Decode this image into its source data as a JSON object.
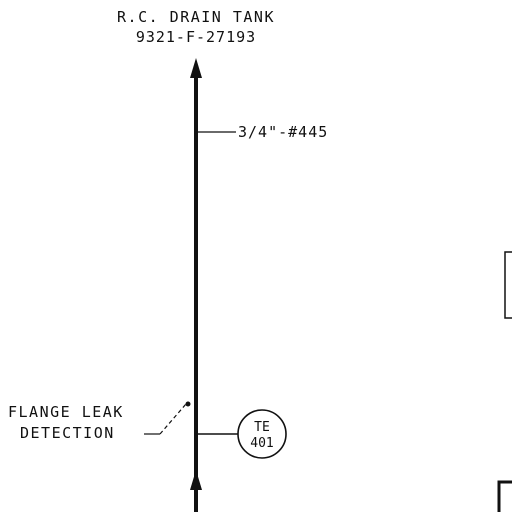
{
  "drawing": {
    "destination_title": "R.C. DRAIN TANK",
    "destination_dwg": "9321-F-27193",
    "line_label": "3/4\"-#445",
    "note_line1": "FLANGE LEAK",
    "note_line2": "DETECTION",
    "instrument": {
      "tag_letters": "TE",
      "tag_number": "401"
    }
  },
  "colors": {
    "ink": "#111111",
    "background": "#ffffff"
  }
}
